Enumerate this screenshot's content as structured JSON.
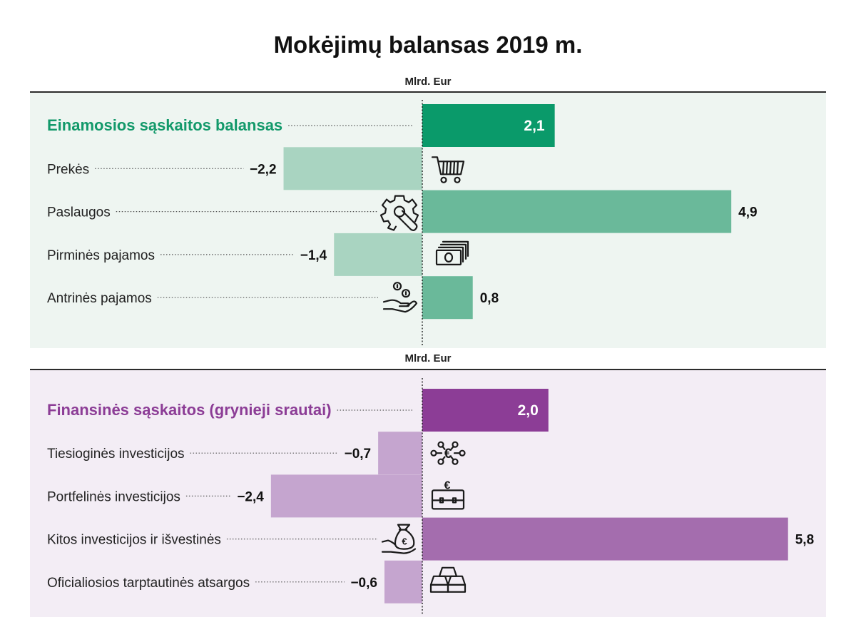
{
  "title": "Mokėjimų balansas 2019 m.",
  "colors": {
    "ca_bg": "#eef5f1",
    "fa_bg": "#f3edf5",
    "ca_total": "#0a9a6a",
    "ca_pos": "#6ab99a",
    "ca_neg": "#a9d4c1",
    "ca_label": "#12996a",
    "fa_total": "#8c3d96",
    "fa_pos": "#a46dae",
    "fa_neg": "#c5a5cf",
    "fa_label": "#8c3d96"
  },
  "chart_data": [
    {
      "type": "bar",
      "unit_label": "Mlrd. Eur",
      "total": {
        "label": "Einamosios sąskaitos balansas",
        "value": 2.1,
        "display": "2,1"
      },
      "items": [
        {
          "label": "Prekės",
          "value": -2.2,
          "display": "−2,2",
          "icon": "shopping-cart-icon"
        },
        {
          "label": "Paslaugos",
          "value": 4.9,
          "display": "4,9",
          "icon": "gear-wrench-icon"
        },
        {
          "label": "Pirminės pajamos",
          "value": -1.4,
          "display": "−1,4",
          "icon": "banknotes-icon"
        },
        {
          "label": "Antrinės pajamos",
          "value": 0.8,
          "display": "0,8",
          "icon": "hand-coins-icon"
        }
      ]
    },
    {
      "type": "bar",
      "unit_label": "Mlrd. Eur",
      "total": {
        "label": "Finansinės sąskaitos (grynieji srautai)",
        "value": 2.0,
        "display": "2,0"
      },
      "items": [
        {
          "label": "Tiesioginės investicijos",
          "value": -0.7,
          "display": "−0,7",
          "icon": "euro-network-icon"
        },
        {
          "label": "Portfelinės investicijos",
          "value": -2.4,
          "display": "−2,4",
          "icon": "euro-briefcase-icon"
        },
        {
          "label": "Kitos investicijos ir išvestinės",
          "value": 5.8,
          "display": "5,8",
          "icon": "money-bag-hand-icon"
        },
        {
          "label": "Oficialiosios tarptautinės atsargos",
          "value": -0.6,
          "display": "−0,6",
          "icon": "gold-bars-icon"
        }
      ]
    }
  ]
}
